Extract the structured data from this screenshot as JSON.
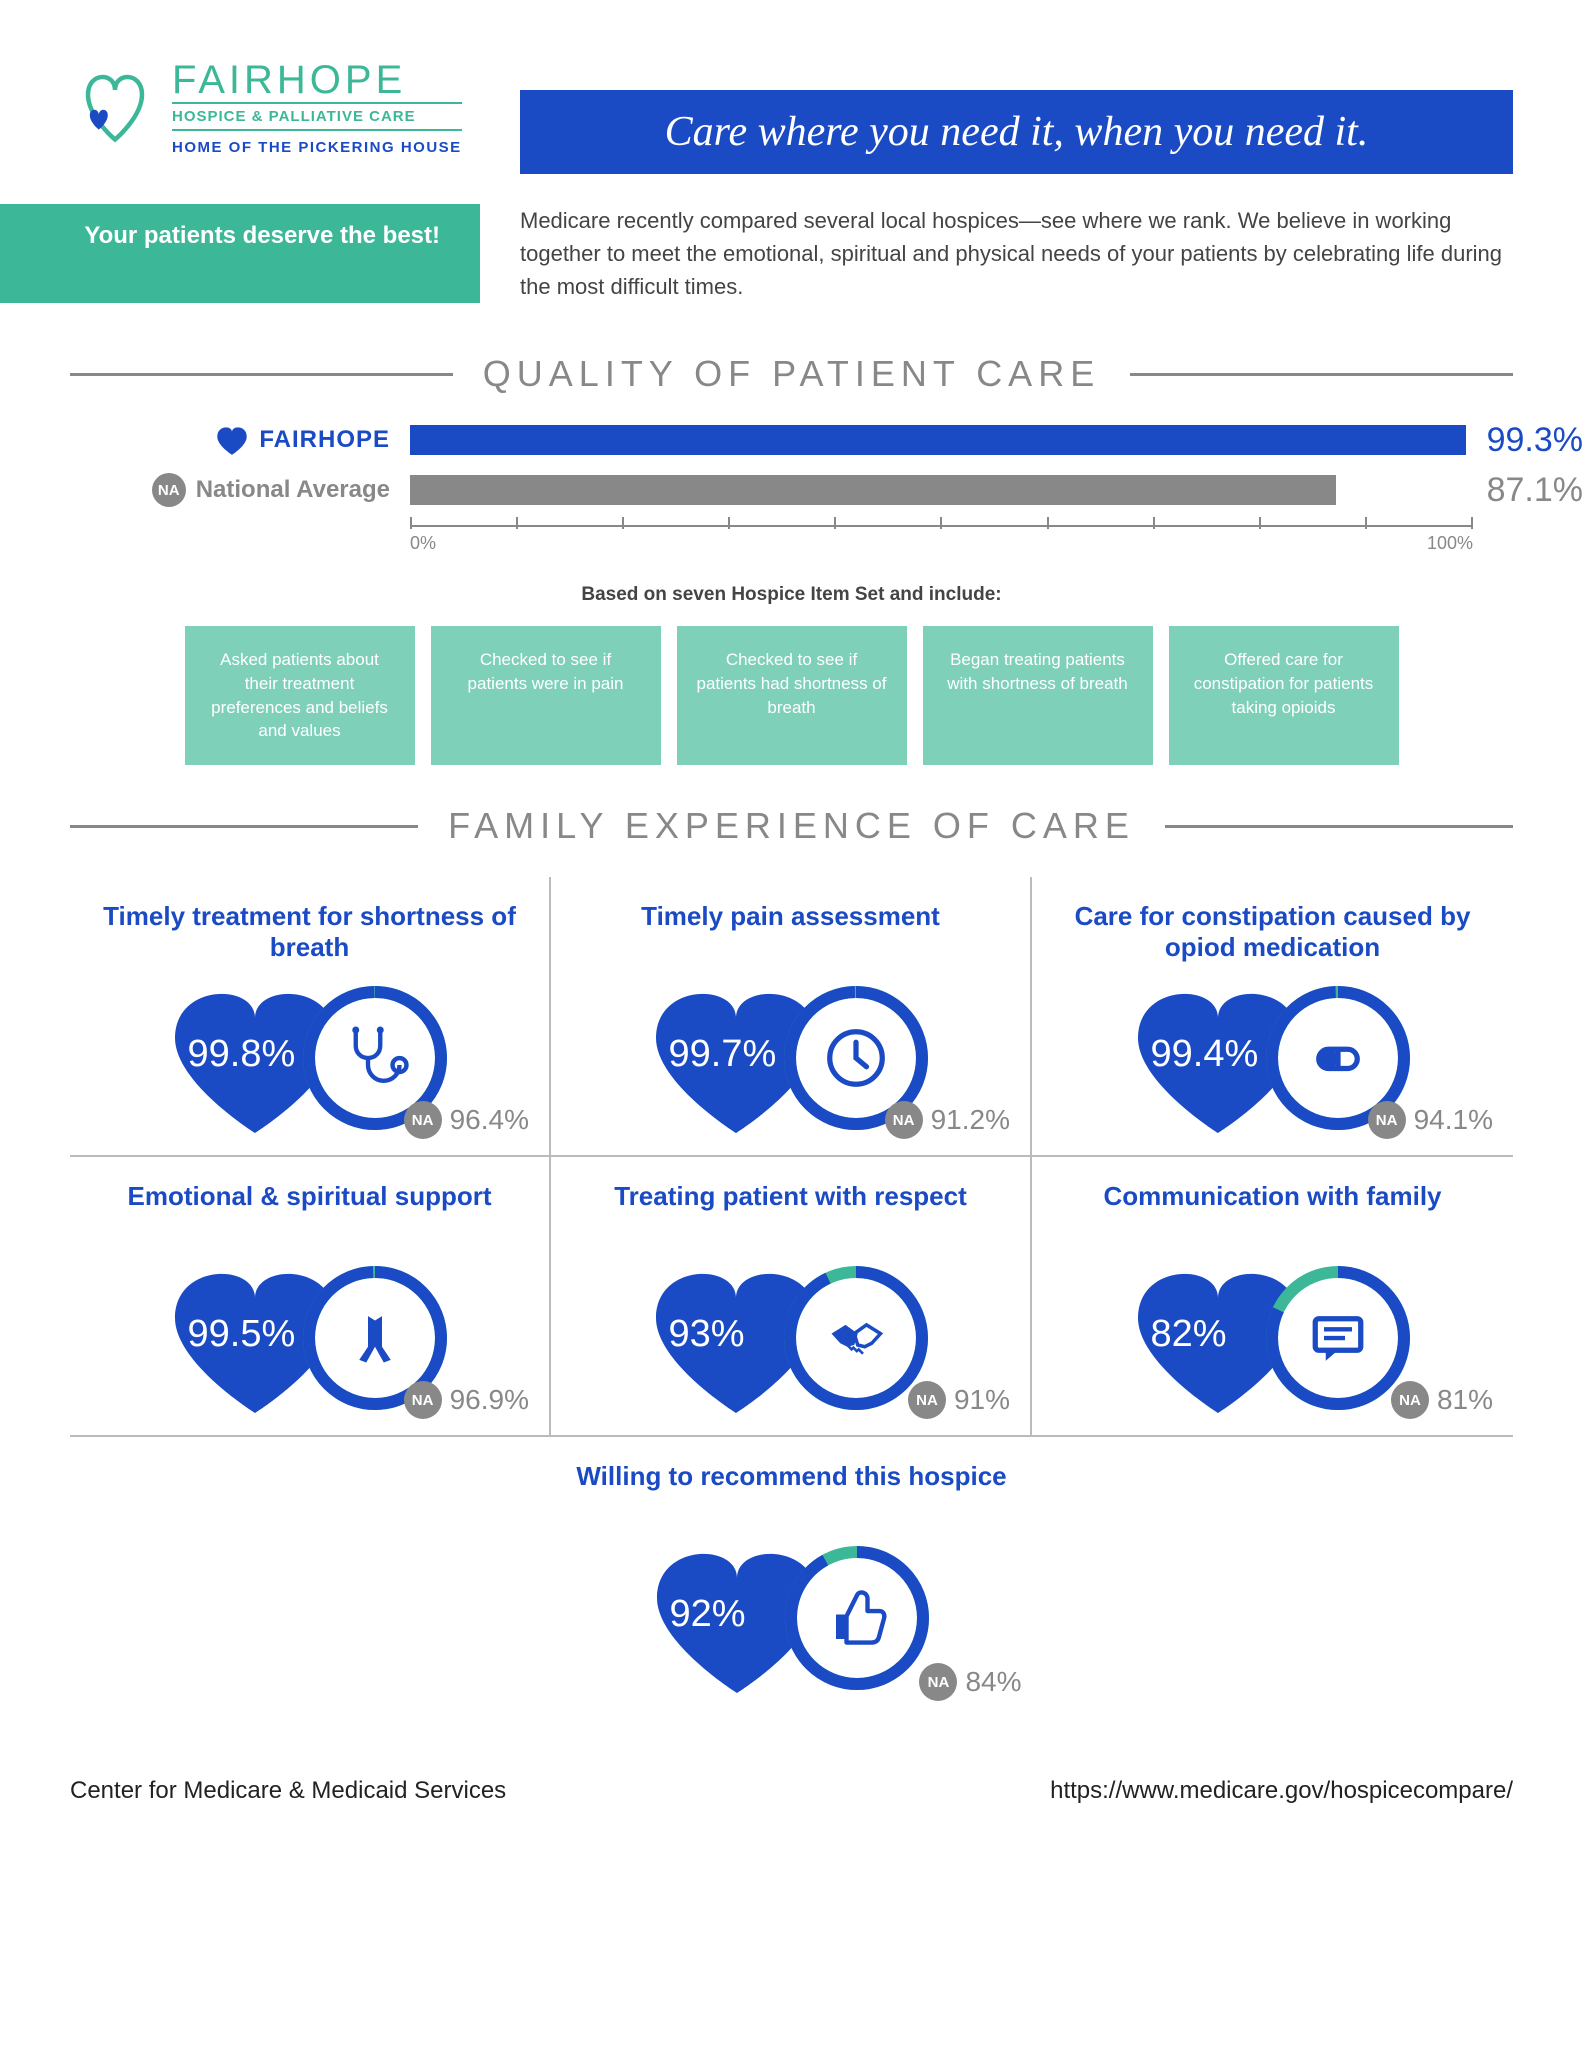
{
  "brand": {
    "name": "FAIRHOPE",
    "sub": "HOSPICE & PALLIATIVE CARE",
    "home": "HOME OF THE PICKERING HOUSE"
  },
  "tagline": "Care where you need it, when you need it.",
  "deserve": "Your patients deserve the best!",
  "intro": "Medicare recently compared several local hospices—see where we rank. We believe in working together to meet the emotional, spiritual and physical needs of your patients by celebrating life during the most difficult times.",
  "quality": {
    "heading": "QUALITY OF PATIENT CARE",
    "fairhope_label": "FAIRHOPE",
    "na_label": "National Average",
    "fairhope_pct": 99.3,
    "fairhope_display": "99.3%",
    "na_pct": 87.1,
    "na_display": "87.1%",
    "axis_min": "0%",
    "axis_max": "100%",
    "basis_caption": "Based on seven Hospice Item Set and include:",
    "items": [
      "Asked patients about their treatment preferences and beliefs and values",
      "Checked to see if patients were in pain",
      "Checked to see if patients had shortness of breath",
      "Began treating patients with shortness of breath",
      "Offered care for constipation for patients taking opioids"
    ]
  },
  "family": {
    "heading": "FAMILY EXPERIENCE OF CARE",
    "cards": [
      {
        "title": "Timely treatment for shortness of breath",
        "fh": 99.8,
        "fh_display": "99.8%",
        "na_display": "96.4%",
        "icon": "stethoscope"
      },
      {
        "title": "Timely pain assessment",
        "fh": 99.7,
        "fh_display": "99.7%",
        "na_display": "91.2%",
        "icon": "clock"
      },
      {
        "title": "Care for constipation caused by opiod medication",
        "fh": 99.4,
        "fh_display": "99.4%",
        "na_display": "94.1%",
        "icon": "pill"
      },
      {
        "title": "Emotional & spiritual support",
        "fh": 99.5,
        "fh_display": "99.5%",
        "na_display": "96.9%",
        "icon": "pray"
      },
      {
        "title": "Treating patient with respect",
        "fh": 93,
        "fh_display": "93%",
        "na_display": "91%",
        "icon": "handshake"
      },
      {
        "title": "Communication with family",
        "fh": 82,
        "fh_display": "82%",
        "na_display": "81%",
        "icon": "chat"
      },
      {
        "title": "Willing to recommend this hospice",
        "fh": 92,
        "fh_display": "92%",
        "na_display": "84%",
        "icon": "thumbsup"
      }
    ]
  },
  "footer": {
    "left": "Center for Medicare & Medicaid Services",
    "right": "https://www.medicare.gov/hospicecompare/"
  },
  "colors": {
    "blue": "#1a4bc4",
    "teal": "#3cb898",
    "teal_light": "#7ed0b8",
    "grey": "#888888"
  }
}
